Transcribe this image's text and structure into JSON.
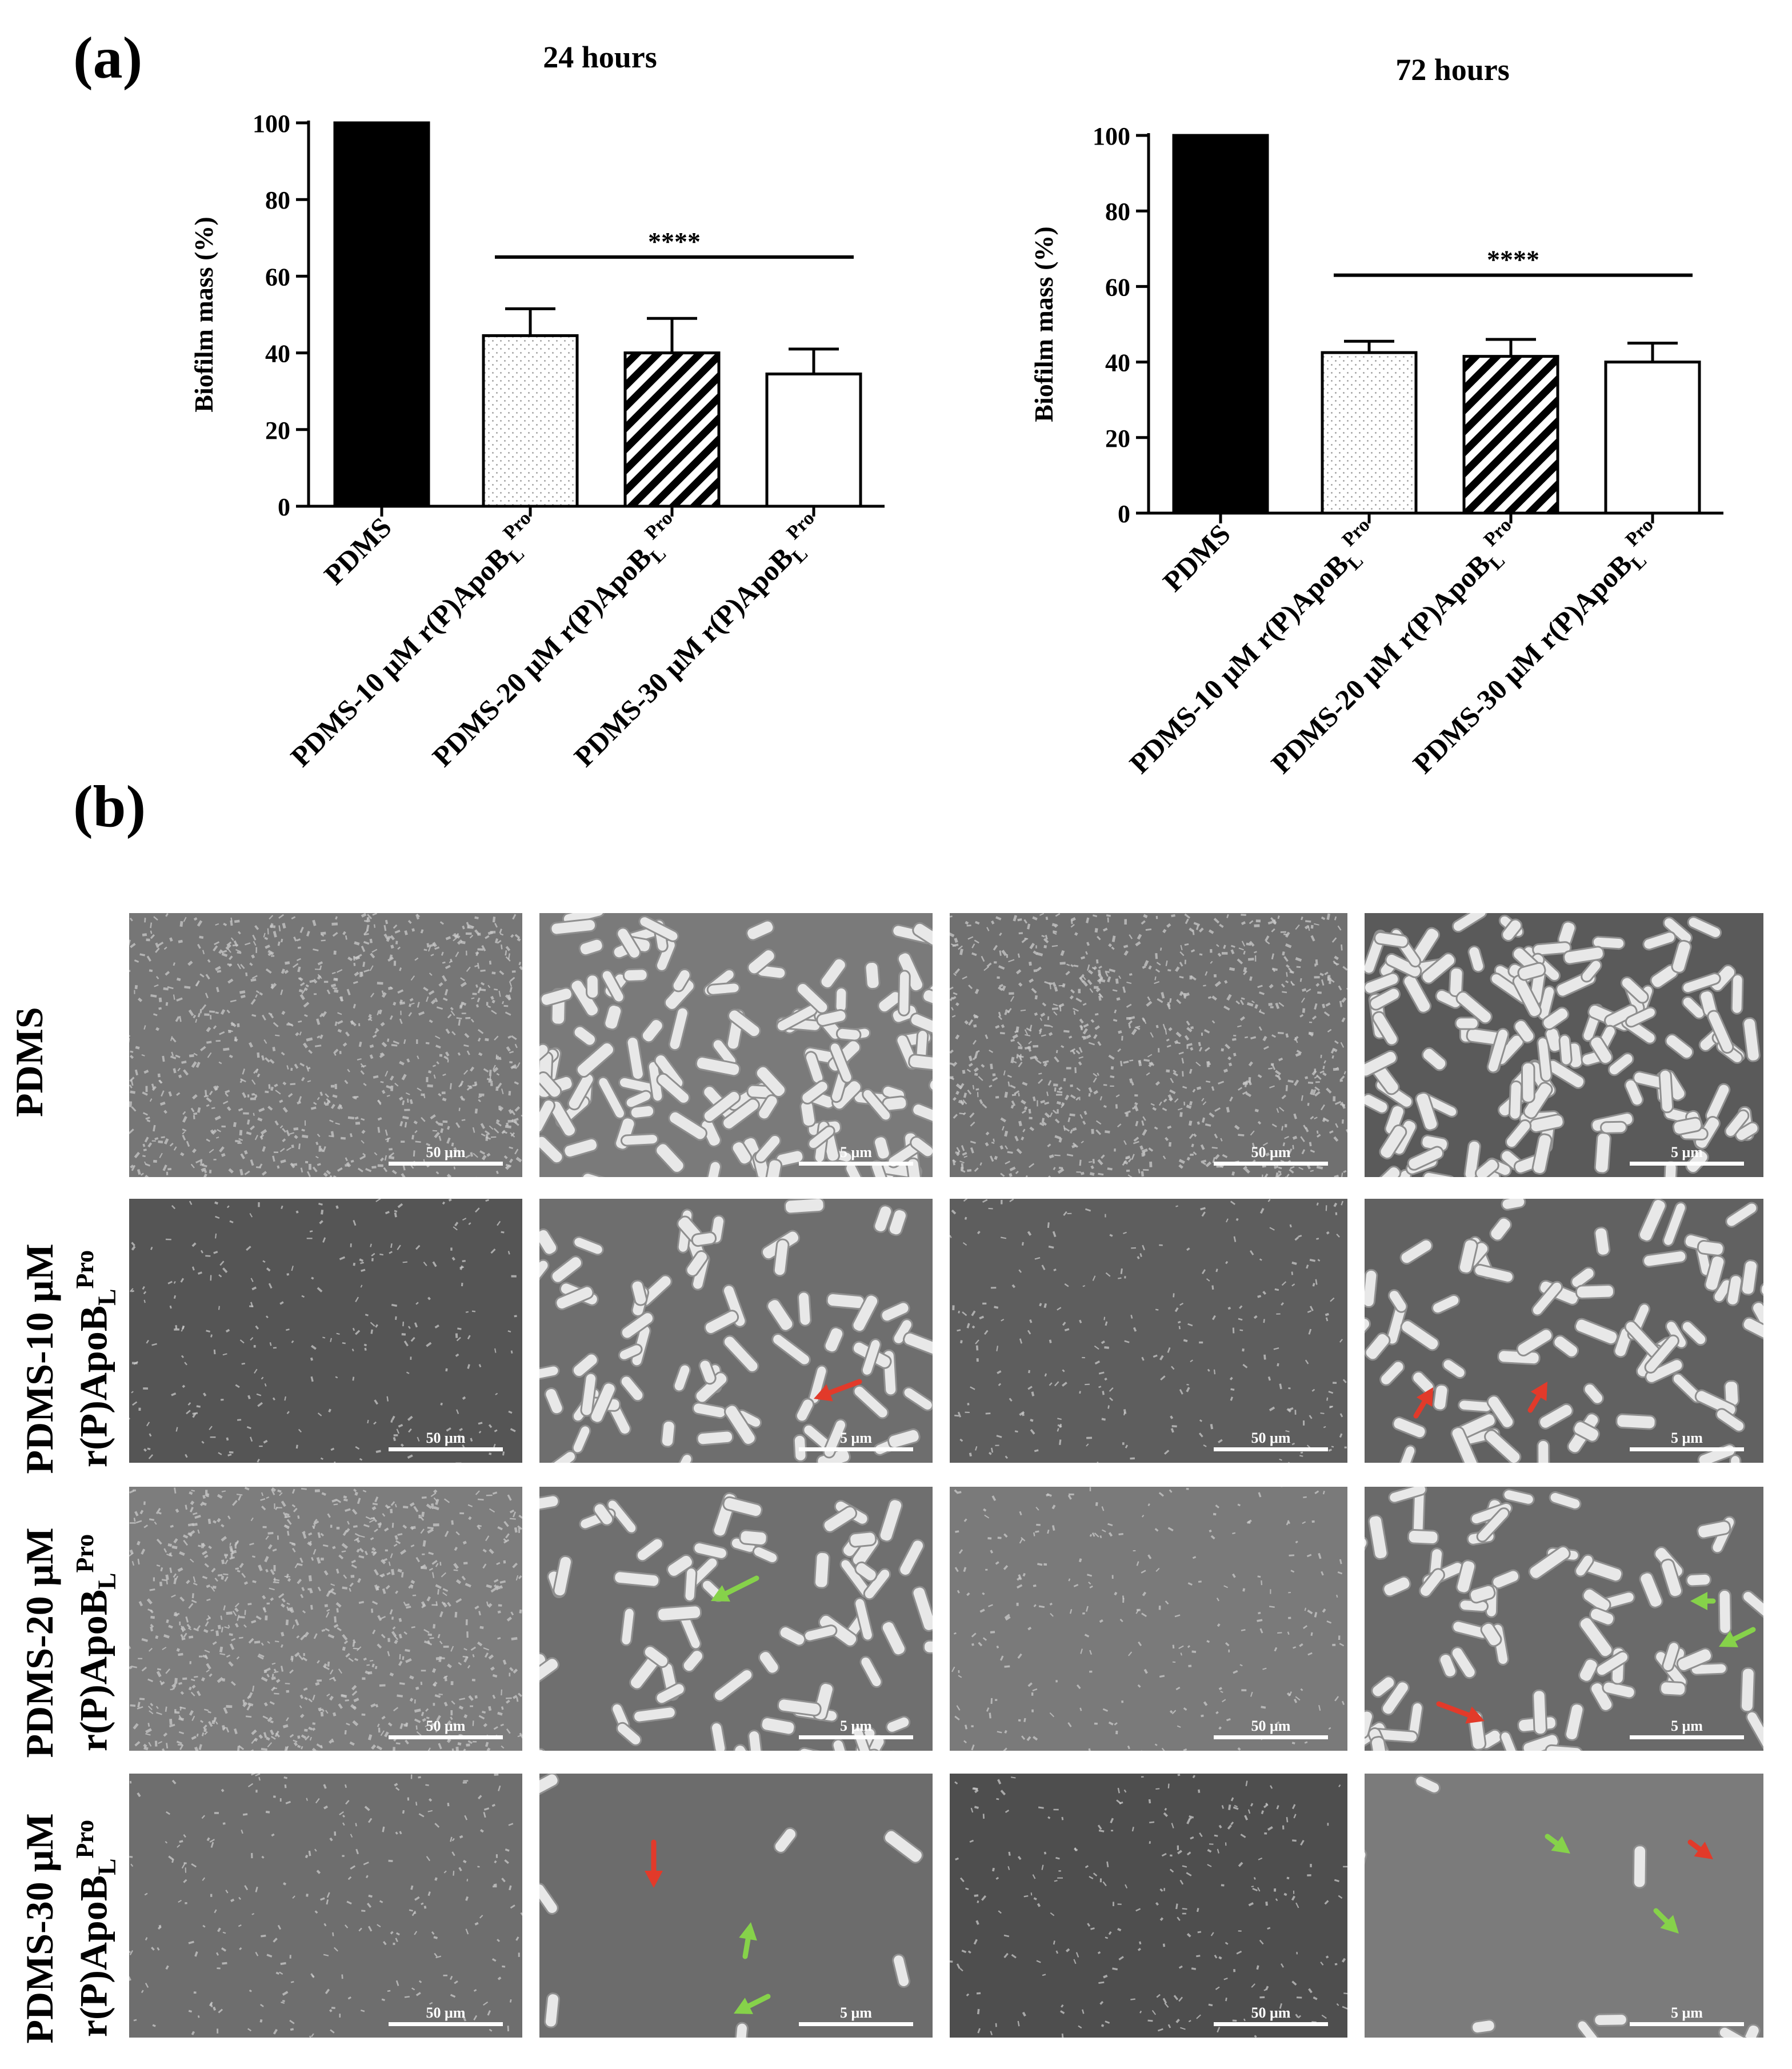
{
  "panel_labels": {
    "a": "(a)",
    "b": "(b)"
  },
  "colors": {
    "text": "#000000",
    "red_arrow": "#e23a2a",
    "green_arrow": "#86d24a",
    "sem_bg": "#6b6b6b"
  },
  "chart_data": [
    {
      "type": "bar",
      "title": "24 hours",
      "ylabel": "Biofilm mass (%)",
      "xlabel": "",
      "ylim": [
        0,
        100
      ],
      "yticks": [
        0,
        20,
        40,
        60,
        80,
        100
      ],
      "categories": [
        {
          "main": "PDMS",
          "sup": "",
          "sub": ""
        },
        {
          "main": "PDMS-10 μM r(P)ApoB",
          "sub": "L",
          "sup": "Pro"
        },
        {
          "main": "PDMS-20 μM r(P)ApoB",
          "sub": "L",
          "sup": "Pro"
        },
        {
          "main": "PDMS-30 μM r(P)ApoB",
          "sub": "L",
          "sup": "Pro"
        }
      ],
      "values": [
        100,
        44.5,
        40,
        34.5
      ],
      "errors": [
        0,
        7,
        9,
        6.5
      ],
      "patterns": [
        "solid",
        "dots",
        "hatch",
        "white"
      ],
      "significance": {
        "label": "****",
        "from": 1,
        "to": 3,
        "y": 65
      }
    },
    {
      "type": "bar",
      "title": "72 hours",
      "ylabel": "Biofilm mass (%)",
      "xlabel": "",
      "ylim": [
        0,
        100
      ],
      "yticks": [
        0,
        20,
        40,
        60,
        80,
        100
      ],
      "categories": [
        {
          "main": "PDMS",
          "sup": "",
          "sub": ""
        },
        {
          "main": "PDMS-10 μM r(P)ApoB",
          "sub": "L",
          "sup": "Pro"
        },
        {
          "main": "PDMS-20 μM r(P)ApoB",
          "sub": "L",
          "sup": "Pro"
        },
        {
          "main": "PDMS-30 μM r(P)ApoB",
          "sub": "L",
          "sup": "Pro"
        }
      ],
      "values": [
        100,
        42.5,
        41.5,
        40
      ],
      "errors": [
        0,
        3,
        4.5,
        5
      ],
      "patterns": [
        "solid",
        "dots",
        "hatch",
        "white"
      ],
      "significance": {
        "label": "****",
        "from": 1,
        "to": 3,
        "y": 63
      }
    }
  ],
  "micrographs": {
    "rows": [
      {
        "line1": "PDMS",
        "line2": "",
        "sub": "",
        "sup": ""
      },
      {
        "line1": "PDMS-10 μM",
        "line2": "r(P)ApoB",
        "sub": "L",
        "sup": "Pro"
      },
      {
        "line1": "PDMS-20 μM",
        "line2": "r(P)ApoB",
        "sub": "L",
        "sup": "Pro"
      },
      {
        "line1": "PDMS-30 μM",
        "line2": "r(P)ApoB",
        "sub": "L",
        "sup": "Pro"
      }
    ],
    "scale_low": "50 μm",
    "scale_high": "5 μm",
    "cells": [
      {
        "scale": "50 μm",
        "texture": "network",
        "tone": "#767676"
      },
      {
        "scale": "5 μm",
        "texture": "rods-dense",
        "tone": "#7a7a7a"
      },
      {
        "scale": "50 μm",
        "texture": "network",
        "tone": "#707070"
      },
      {
        "scale": "5 μm",
        "texture": "rods-dense",
        "tone": "#5a5a5a"
      },
      {
        "scale": "50 μm",
        "texture": "sparse",
        "tone": "#555555"
      },
      {
        "scale": "5 μm",
        "texture": "rods-medium",
        "tone": "#6e6e6e"
      },
      {
        "scale": "50 μm",
        "texture": "sparse",
        "tone": "#5e5e5e"
      },
      {
        "scale": "5 μm",
        "texture": "rods-medium",
        "tone": "#616161"
      },
      {
        "scale": "50 μm",
        "texture": "network",
        "tone": "#7d7d7d"
      },
      {
        "scale": "5 μm",
        "texture": "rods-medium",
        "tone": "#6f6f6f"
      },
      {
        "scale": "50 μm",
        "texture": "sparse",
        "tone": "#7a7a7a"
      },
      {
        "scale": "5 μm",
        "texture": "rods-medium",
        "tone": "#6a6a6a"
      },
      {
        "scale": "50 μm",
        "texture": "sparse",
        "tone": "#6e6e6e"
      },
      {
        "scale": "5 μm",
        "texture": "rods-few",
        "tone": "#6c6c6c"
      },
      {
        "scale": "50 μm",
        "texture": "sparse",
        "tone": "#4e4e4e"
      },
      {
        "scale": "5 μm",
        "texture": "rods-few",
        "tone": "#7b7b7b"
      }
    ]
  }
}
